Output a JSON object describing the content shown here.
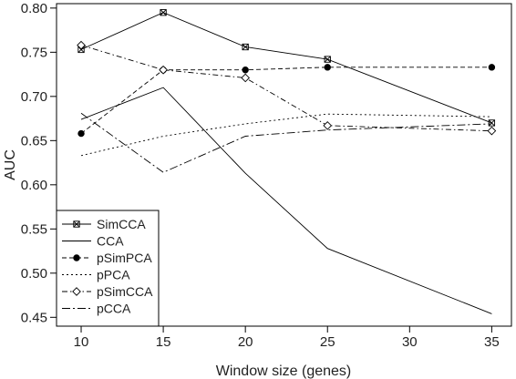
{
  "chart_data": {
    "type": "line",
    "title": "",
    "xlabel": "Window size (genes)",
    "ylabel": "AUC",
    "xlim": [
      8.5,
      36.2
    ],
    "ylim": [
      0.44,
      0.805
    ],
    "x_ticks": [
      10,
      15,
      20,
      25,
      30,
      35
    ],
    "y_ticks": [
      0.45,
      0.5,
      0.55,
      0.6,
      0.65,
      0.7,
      0.75,
      0.8
    ],
    "y_tick_labels": [
      "0.45",
      "0.50",
      "0.55",
      "0.60",
      "0.65",
      "0.70",
      "0.75",
      "0.80"
    ],
    "x": [
      10,
      15,
      20,
      25,
      35
    ],
    "grid": false,
    "legend_position": "bottom-left",
    "series": [
      {
        "name": "SimCCA",
        "style": "solid",
        "marker": "boxed-x",
        "values": [
          0.753,
          0.795,
          0.756,
          0.742,
          0.67
        ]
      },
      {
        "name": "CCA",
        "style": "solid",
        "marker": "none",
        "values": [
          0.674,
          0.71,
          0.613,
          0.528,
          0.454
        ]
      },
      {
        "name": "pSimPCA",
        "style": "dashed",
        "marker": "filled-circle",
        "values": [
          0.658,
          0.73,
          0.73,
          0.733,
          0.733
        ]
      },
      {
        "name": "pPCA",
        "style": "dotted",
        "marker": "none",
        "values": [
          0.633,
          0.655,
          0.669,
          0.68,
          0.677
        ]
      },
      {
        "name": "pSimCCA",
        "style": "dashdot",
        "marker": "open-diamond",
        "values": [
          0.758,
          0.73,
          0.721,
          0.667,
          0.661
        ]
      },
      {
        "name": "pCCA",
        "style": "longdashdot",
        "marker": "none",
        "values": [
          0.681,
          0.614,
          0.655,
          0.662,
          0.669
        ]
      }
    ]
  }
}
